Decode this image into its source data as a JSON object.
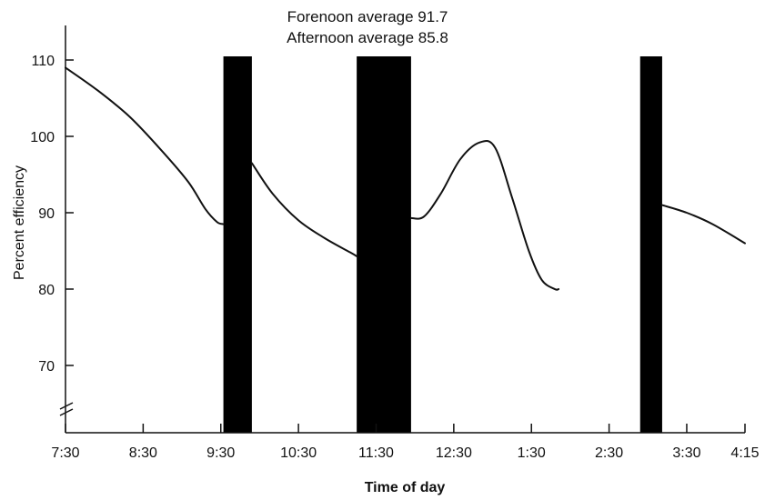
{
  "chart_data": {
    "type": "line",
    "title_lines": [
      "Forenoon average 91.7",
      "Afternoon average 85.8"
    ],
    "xlabel": "Time of day",
    "ylabel": "Percent efficiency",
    "x_tick_labels": [
      "7:30",
      "8:30",
      "9:30",
      "10:30",
      "11:30",
      "12:30",
      "1:30",
      "2:30",
      "3:30",
      "4:15"
    ],
    "x_tick_minutes": [
      450,
      510,
      570,
      630,
      690,
      750,
      810,
      870,
      930,
      975
    ],
    "y_ticks": [
      70,
      80,
      90,
      100,
      110
    ],
    "xlim": [
      450,
      975
    ],
    "ylim": [
      60,
      114
    ],
    "y_axis_break": true,
    "line_color": "#111111",
    "bar_color": "#000000",
    "breaks": [
      {
        "start": 572,
        "end": 594
      },
      {
        "start": 675,
        "end": 717
      },
      {
        "start": 894,
        "end": 911
      }
    ],
    "series": [
      {
        "segment": 1,
        "points": [
          [
            450,
            109
          ],
          [
            475,
            106
          ],
          [
            500,
            102.5
          ],
          [
            525,
            98
          ],
          [
            545,
            94
          ],
          [
            558,
            90.5
          ],
          [
            567,
            88.8
          ],
          [
            572,
            88.5
          ]
        ]
      },
      {
        "segment": 2,
        "points": [
          [
            594,
            96.5
          ],
          [
            610,
            92.5
          ],
          [
            630,
            89
          ],
          [
            650,
            86.7
          ],
          [
            670,
            84.8
          ],
          [
            675,
            84.3
          ]
        ]
      },
      {
        "segment": 3,
        "points": [
          [
            717,
            89.3
          ],
          [
            727,
            89.5
          ],
          [
            740,
            92.5
          ],
          [
            755,
            97
          ],
          [
            770,
            99.2
          ],
          [
            782,
            98.5
          ],
          [
            795,
            92
          ],
          [
            808,
            85
          ],
          [
            818,
            81.2
          ],
          [
            828,
            80
          ],
          [
            831,
            80
          ]
        ]
      },
      {
        "segment": 4,
        "points": [
          [
            911,
            91
          ],
          [
            930,
            90
          ],
          [
            950,
            88.5
          ],
          [
            975,
            86
          ]
        ]
      }
    ]
  }
}
